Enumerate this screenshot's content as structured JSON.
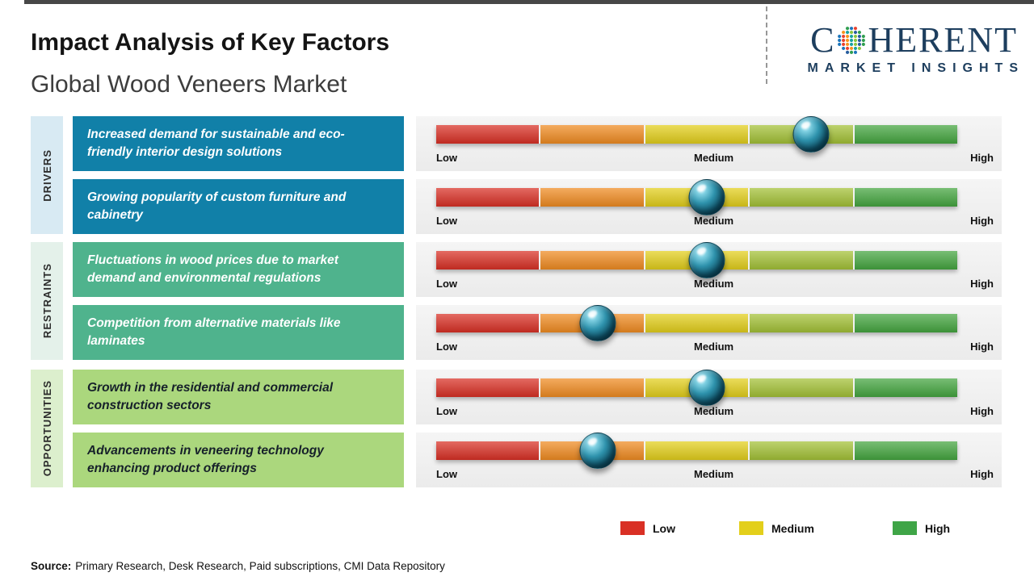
{
  "header": {
    "title": "Impact Analysis of Key Factors",
    "subtitle": "Global Wood Veneers Market"
  },
  "logo": {
    "part1": "C",
    "part2": "HERENT",
    "tagline": "MARKET INSIGHTS"
  },
  "source": {
    "prefix": "Source:",
    "text": "Primary Research, Desk Research, Paid subscriptions, CMI Data Repository"
  },
  "legend": [
    {
      "label": "Low",
      "color": "#d93025"
    },
    {
      "label": "Medium",
      "color": "#e3cf1b"
    },
    {
      "label": "High",
      "color": "#3fa547"
    }
  ],
  "colors": {
    "driver_box": "#1180a8",
    "restraint_box": "#4fb38d",
    "opportunity_box": "#abd77d",
    "marker_sphere": "#0d4a5e",
    "brand_navy": "#1d3e5e",
    "bar_scale": [
      "#d93025",
      "#f08b21",
      "#e3cf1b",
      "#a3c136",
      "#44a53f"
    ]
  },
  "chart_data": {
    "type": "table",
    "title": "Impact Analysis of Key Factors",
    "subtitle": "Global Wood Veneers Market",
    "scale_labels": [
      "Low",
      "Medium",
      "High"
    ],
    "scale_range_pct": [
      0,
      100
    ],
    "categories": [
      "DRIVERS",
      "RESTRAINTS",
      "OPPORTUNITIES"
    ],
    "legend": [
      "Low",
      "Medium",
      "High"
    ],
    "rows": [
      {
        "category": "Drivers",
        "factor": "Increased demand for sustainable and eco-friendly interior design solutions",
        "impact_position_pct": 72,
        "impact": "Medium-High"
      },
      {
        "category": "Drivers",
        "factor": "Growing popularity of custom furniture and cabinetry",
        "impact_position_pct": 52,
        "impact": "Medium"
      },
      {
        "category": "Restraints",
        "factor": "Fluctuations in wood prices due to market demand and environmental regulations",
        "impact_position_pct": 52,
        "impact": "Medium"
      },
      {
        "category": "Restraints",
        "factor": "Competition from alternative materials like laminates",
        "impact_position_pct": 31,
        "impact": "Low-Medium"
      },
      {
        "category": "Opportunities",
        "factor": "Growth in the residential and commercial construction sectors",
        "impact_position_pct": 52,
        "impact": "Medium"
      },
      {
        "category": "Opportunities",
        "factor": "Advancements in veneering technology enhancing product offerings",
        "impact_position_pct": 31,
        "impact": "Low-Medium"
      }
    ]
  }
}
